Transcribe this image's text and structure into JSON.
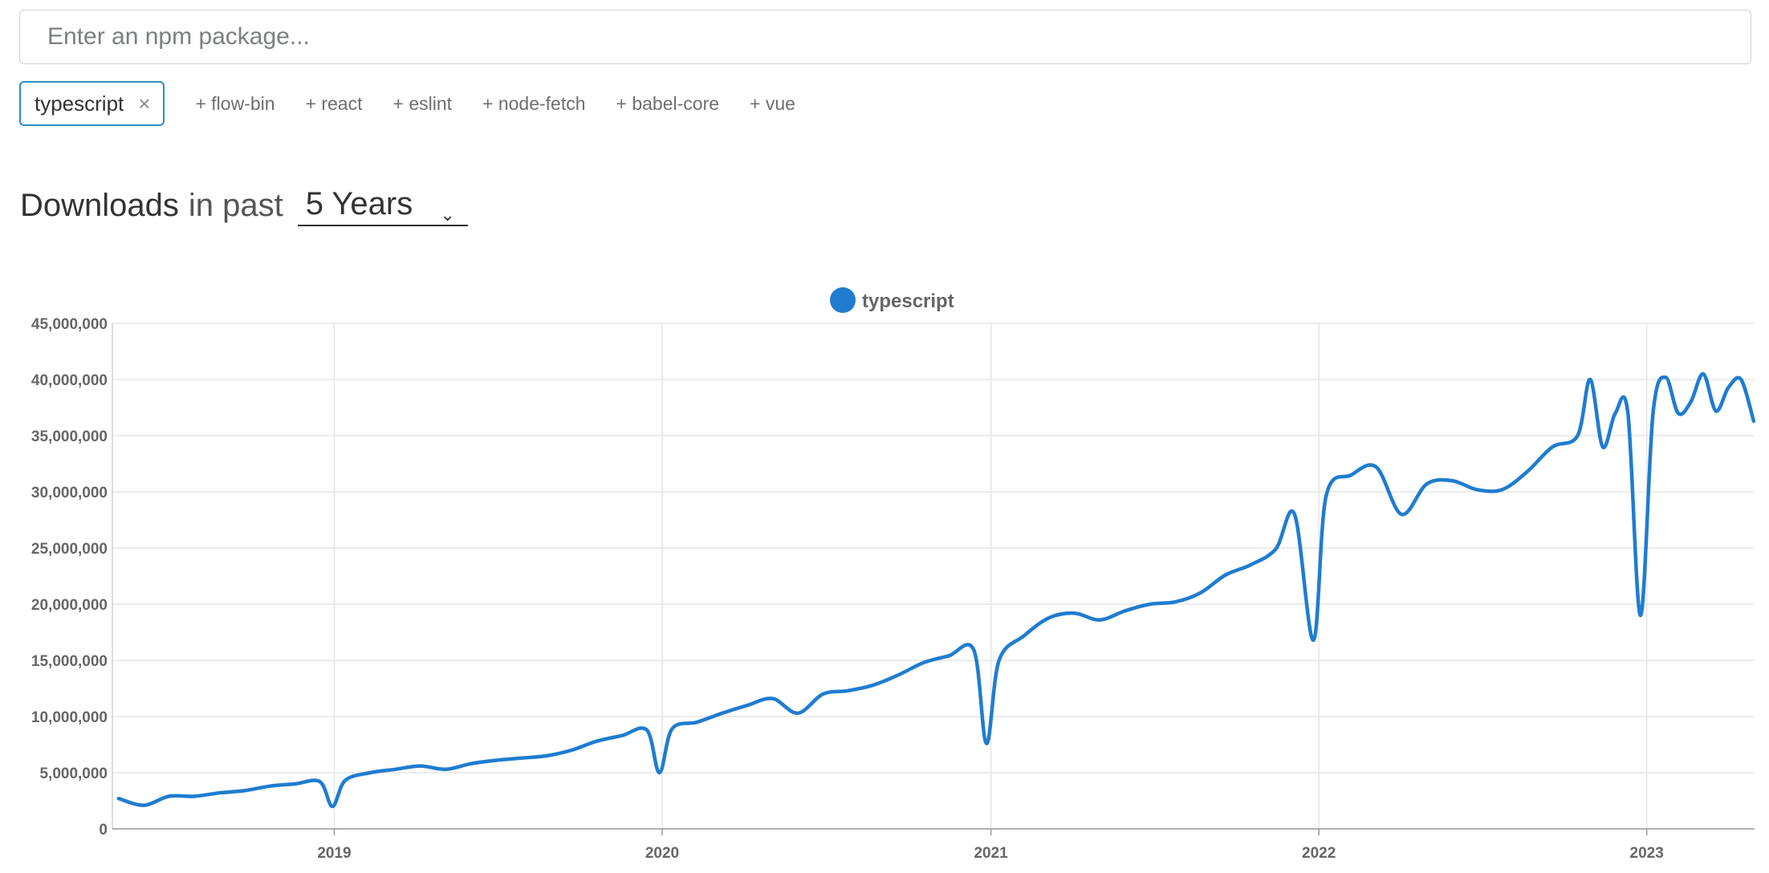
{
  "search": {
    "placeholder": "Enter an npm package..."
  },
  "selected_package": {
    "label": "typescript",
    "remove_glyph": "×"
  },
  "suggestions": [
    "+ flow-bin",
    "+ react",
    "+ eslint",
    "+ node-fetch",
    "+ babel-core",
    "+ vue"
  ],
  "heading": {
    "strong": "Downloads",
    "light": "in past",
    "period": "5 Years"
  },
  "colors": {
    "accent": "#2b8fc2",
    "line": "#1f7cd0"
  },
  "chart_data": {
    "type": "line",
    "title": "",
    "xlabel": "",
    "ylabel": "",
    "ylim": [
      0,
      45000000
    ],
    "yticks": [
      "0",
      "5,000,000",
      "10,000,000",
      "15,000,000",
      "20,000,000",
      "25,000,000",
      "30,000,000",
      "35,000,000",
      "40,000,000",
      "45,000,000"
    ],
    "xticks": [
      "2019",
      "2020",
      "2021",
      "2022",
      "2023"
    ],
    "grid": true,
    "legend": "top-center",
    "series": [
      {
        "name": "typescript",
        "color": "#1f7cd0",
        "x": [
          "2018-05-06",
          "2018-06-03",
          "2018-07-01",
          "2018-07-29",
          "2018-08-26",
          "2018-09-23",
          "2018-10-21",
          "2018-11-18",
          "2018-12-16",
          "2018-12-30",
          "2019-01-13",
          "2019-02-10",
          "2019-03-10",
          "2019-04-07",
          "2019-05-05",
          "2019-06-02",
          "2019-06-30",
          "2019-07-28",
          "2019-08-25",
          "2019-09-22",
          "2019-10-20",
          "2019-11-17",
          "2019-12-15",
          "2019-12-29",
          "2020-01-12",
          "2020-02-09",
          "2020-03-08",
          "2020-04-05",
          "2020-05-03",
          "2020-05-31",
          "2020-06-28",
          "2020-07-26",
          "2020-08-23",
          "2020-09-20",
          "2020-10-18",
          "2020-11-15",
          "2020-12-13",
          "2020-12-27",
          "2021-01-10",
          "2021-02-07",
          "2021-03-07",
          "2021-04-04",
          "2021-05-02",
          "2021-05-30",
          "2021-06-27",
          "2021-07-25",
          "2021-08-22",
          "2021-09-19",
          "2021-10-17",
          "2021-11-14",
          "2021-12-05",
          "2021-12-26",
          "2022-01-09",
          "2022-02-06",
          "2022-03-06",
          "2022-04-03",
          "2022-05-01",
          "2022-05-29",
          "2022-06-26",
          "2022-07-24",
          "2022-08-21",
          "2022-09-18",
          "2022-10-16",
          "2022-10-30",
          "2022-11-13",
          "2022-11-27",
          "2022-12-11",
          "2022-12-25",
          "2023-01-08",
          "2023-01-22",
          "2023-02-05",
          "2023-02-19",
          "2023-03-05",
          "2023-03-19",
          "2023-04-02",
          "2023-04-16",
          "2023-04-30"
        ],
        "values": [
          2700000,
          2100000,
          2900000,
          2900000,
          3200000,
          3400000,
          3800000,
          4000000,
          4200000,
          2000000,
          4300000,
          5000000,
          5300000,
          5600000,
          5300000,
          5800000,
          6100000,
          6300000,
          6500000,
          7000000,
          7800000,
          8300000,
          8800000,
          5000000,
          8900000,
          9500000,
          10300000,
          11000000,
          11600000,
          10300000,
          12000000,
          12300000,
          12800000,
          13700000,
          14800000,
          15400000,
          15900000,
          7600000,
          15000000,
          17200000,
          18800000,
          19200000,
          18600000,
          19400000,
          20000000,
          20200000,
          21000000,
          22600000,
          23500000,
          24900000,
          28000000,
          16800000,
          29600000,
          31500000,
          32200000,
          28000000,
          30700000,
          31000000,
          30200000,
          30200000,
          31800000,
          34000000,
          35000000,
          40000000,
          34000000,
          37000000,
          37000000,
          19000000,
          37000000,
          40200000,
          37000000,
          38000000,
          40500000,
          37200000,
          39300000,
          40000000,
          36300000
        ]
      }
    ]
  }
}
